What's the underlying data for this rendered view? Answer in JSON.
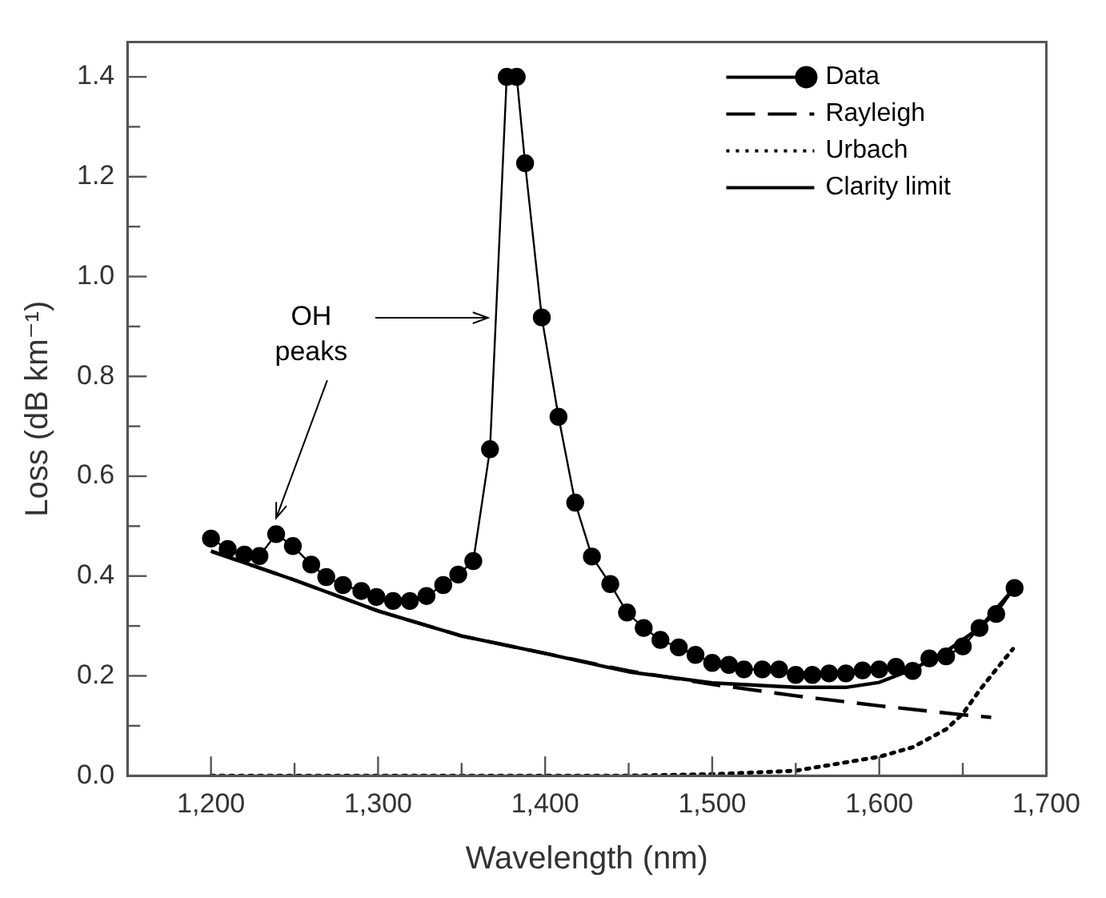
{
  "chart_data": {
    "type": "line",
    "xlabel": "Wavelength (nm)",
    "ylabel": "Loss (dB km⁻¹)",
    "xlim": [
      1150,
      1700
    ],
    "ylim": [
      0,
      1.47
    ],
    "xticks": [
      {
        "value": 1200,
        "label": "1,200"
      },
      {
        "value": 1250,
        "label": null
      },
      {
        "value": 1300,
        "label": "1,300"
      },
      {
        "value": 1350,
        "label": null
      },
      {
        "value": 1400,
        "label": "1,400"
      },
      {
        "value": 1450,
        "label": null
      },
      {
        "value": 1500,
        "label": "1,500"
      },
      {
        "value": 1550,
        "label": null
      },
      {
        "value": 1600,
        "label": "1,600"
      },
      {
        "value": 1650,
        "label": null
      },
      {
        "value": 1700,
        "label": "1,700"
      }
    ],
    "yticks": [
      {
        "value": 0,
        "label": "0.0"
      },
      {
        "value": 0.1,
        "label": null
      },
      {
        "value": 0.2,
        "label": "0.2"
      },
      {
        "value": 0.3,
        "label": null
      },
      {
        "value": 0.4,
        "label": "0.4"
      },
      {
        "value": 0.5,
        "label": null
      },
      {
        "value": 0.6,
        "label": "0.6"
      },
      {
        "value": 0.7,
        "label": null
      },
      {
        "value": 0.8,
        "label": "0.8"
      },
      {
        "value": 0.9,
        "label": null
      },
      {
        "value": 1.0,
        "label": "1.0"
      },
      {
        "value": 1.1,
        "label": null
      },
      {
        "value": 1.2,
        "label": "1.2"
      },
      {
        "value": 1.3,
        "label": null
      },
      {
        "value": 1.4,
        "label": "1.4"
      }
    ],
    "legend": "top right",
    "grid": false,
    "annotations": [
      "OH peaks"
    ],
    "series": [
      {
        "name": "Data",
        "color": "#000000",
        "marker": "circle",
        "line_style": "solid",
        "x": [
          1200,
          1210,
          1220,
          1229,
          1239,
          1249,
          1260,
          1269,
          1279,
          1290,
          1299,
          1309,
          1319,
          1329,
          1339,
          1348,
          1357,
          1367,
          1377,
          1383,
          1388,
          1398,
          1408,
          1418,
          1428,
          1439,
          1449,
          1459,
          1469,
          1480,
          1490,
          1500,
          1510,
          1519,
          1530,
          1540,
          1550,
          1560,
          1570,
          1580,
          1590,
          1600,
          1610,
          1620,
          1630,
          1640,
          1650,
          1660,
          1670,
          1681
        ],
        "values": [
          0.475,
          0.454,
          0.443,
          0.44,
          0.484,
          0.46,
          0.423,
          0.398,
          0.382,
          0.37,
          0.358,
          0.35,
          0.35,
          0.36,
          0.382,
          0.403,
          0.43,
          0.654,
          1.4,
          1.4,
          1.227,
          0.918,
          0.719,
          0.547,
          0.439,
          0.384,
          0.327,
          0.296,
          0.272,
          0.257,
          0.242,
          0.226,
          0.222,
          0.213,
          0.213,
          0.213,
          0.202,
          0.202,
          0.205,
          0.205,
          0.211,
          0.213,
          0.218,
          0.21,
          0.235,
          0.239,
          0.259,
          0.296,
          0.324,
          0.376
        ]
      },
      {
        "name": "Rayleigh",
        "color": "#000000",
        "marker": "none",
        "line_style": "dashed",
        "x": [
          1200,
          1250,
          1300,
          1350,
          1400,
          1450,
          1500,
          1550,
          1600,
          1650,
          1667
        ],
        "values": [
          0.45,
          0.392,
          0.33,
          0.28,
          0.245,
          0.21,
          0.183,
          0.16,
          0.14,
          0.122,
          0.117
        ]
      },
      {
        "name": "Urbach",
        "color": "#000000",
        "marker": "none",
        "line_style": "dotted",
        "x": [
          1200,
          1450,
          1500,
          1550,
          1600,
          1620,
          1640,
          1650,
          1660,
          1670,
          1680
        ],
        "values": [
          0,
          0,
          0.003,
          0.01,
          0.038,
          0.057,
          0.093,
          0.124,
          0.171,
          0.213,
          0.254
        ]
      },
      {
        "name": "Clarity limit",
        "color": "#000000",
        "marker": "none",
        "line_style": "solid",
        "x": [
          1200,
          1250,
          1300,
          1350,
          1400,
          1450,
          1500,
          1550,
          1580,
          1600,
          1620,
          1640,
          1660,
          1680
        ],
        "values": [
          0.45,
          0.392,
          0.33,
          0.28,
          0.245,
          0.208,
          0.186,
          0.177,
          0.177,
          0.187,
          0.213,
          0.249,
          0.296,
          0.373
        ]
      }
    ]
  }
}
